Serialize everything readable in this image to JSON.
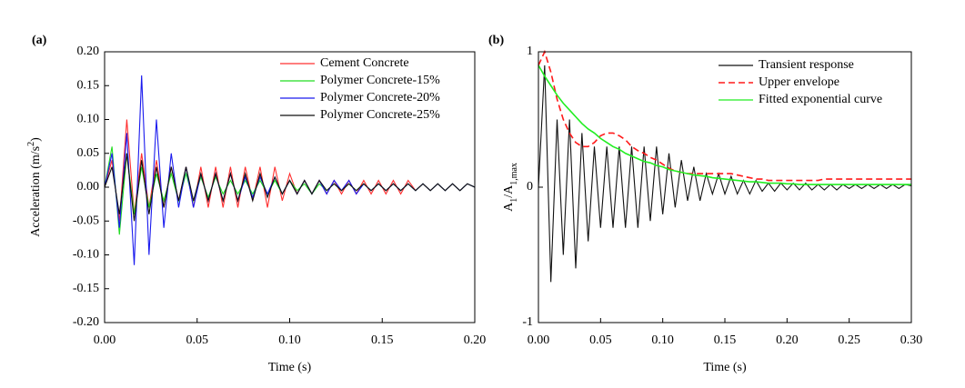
{
  "chart_data": [
    {
      "type": "line",
      "panel_label": "(a)",
      "x_label": "Time (s)",
      "y_label_parts": [
        "Acceleration (m/s",
        "2",
        ")"
      ],
      "xlim": [
        0,
        0.2
      ],
      "ylim": [
        -0.2,
        0.2
      ],
      "xticks": [
        {
          "value": 0,
          "label": "0.00"
        },
        {
          "value": 0.05,
          "label": "0.05"
        },
        {
          "value": 0.1,
          "label": "0.10"
        },
        {
          "value": 0.15,
          "label": "0.15"
        },
        {
          "value": 0.2,
          "label": "0.20"
        }
      ],
      "yticks": [
        {
          "value": -0.2,
          "label": "-0.20"
        },
        {
          "value": -0.15,
          "label": "-0.15"
        },
        {
          "value": -0.1,
          "label": "-0.10"
        },
        {
          "value": -0.05,
          "label": "-0.05"
        },
        {
          "value": 0,
          "label": "0.00"
        },
        {
          "value": 0.05,
          "label": "0.05"
        },
        {
          "value": 0.1,
          "label": "0.10"
        },
        {
          "value": 0.15,
          "label": "0.15"
        },
        {
          "value": 0.2,
          "label": "0.20"
        }
      ],
      "x": [
        0,
        0.004,
        0.008,
        0.012,
        0.016,
        0.02,
        0.024,
        0.028,
        0.032,
        0.036,
        0.04,
        0.044,
        0.048,
        0.052,
        0.056,
        0.06,
        0.064,
        0.068,
        0.072,
        0.076,
        0.08,
        0.084,
        0.088,
        0.092,
        0.096,
        0.1,
        0.104,
        0.108,
        0.112,
        0.116,
        0.12,
        0.124,
        0.128,
        0.132,
        0.136,
        0.14,
        0.144,
        0.148,
        0.152,
        0.156,
        0.16,
        0.164,
        0.168,
        0.172,
        0.176,
        0.18,
        0.184,
        0.188,
        0.192,
        0.196,
        0.2
      ],
      "series": [
        {
          "name": "Cement Concrete",
          "color": "#ff3030",
          "style": "solid",
          "values": [
            0,
            0.04,
            -0.05,
            0.1,
            -0.04,
            0.05,
            -0.03,
            0.04,
            -0.03,
            0.03,
            -0.02,
            0.03,
            -0.03,
            0.03,
            -0.03,
            0.03,
            -0.03,
            0.03,
            -0.03,
            0.03,
            -0.02,
            0.03,
            -0.03,
            0.03,
            -0.02,
            0.02,
            -0.01,
            0.01,
            -0.01,
            0.01,
            -0.01,
            0.01,
            -0.01,
            0.01,
            -0.01,
            0.01,
            -0.01,
            0.01,
            -0.01,
            0.01,
            -0.01,
            0.01,
            -0.005,
            0.005,
            -0.005,
            0.005,
            -0.005,
            0.005,
            -0.005,
            0.005,
            0
          ]
        },
        {
          "name": "Polymer Concrete-15%",
          "color": "#22dd22",
          "style": "solid",
          "values": [
            0,
            0.06,
            -0.07,
            0.05,
            -0.04,
            0.03,
            -0.03,
            0.02,
            -0.02,
            0.02,
            -0.02,
            0.02,
            -0.02,
            0.015,
            -0.015,
            0.015,
            -0.01,
            0.01,
            -0.01,
            0.01,
            -0.01,
            0.01,
            -0.01,
            0.01,
            -0.01,
            0.01,
            -0.005,
            0.005,
            -0.01,
            0.005,
            -0.005,
            0.005,
            -0.005,
            0.005,
            -0.005,
            0.005,
            -0.005,
            0.005,
            -0.005,
            0.005,
            -0.005,
            0.005,
            -0.005,
            0.005,
            -0.005,
            0.005,
            -0.005,
            0.005,
            -0.005,
            0.005,
            0
          ]
        },
        {
          "name": "Polymer Concrete-20%",
          "color": "#1a1aee",
          "style": "solid",
          "values": [
            0,
            0.05,
            -0.06,
            0.08,
            -0.115,
            0.165,
            -0.1,
            0.1,
            -0.06,
            0.05,
            -0.03,
            0.03,
            -0.03,
            0.02,
            -0.02,
            0.02,
            -0.02,
            0.02,
            -0.02,
            0.015,
            -0.015,
            0.015,
            -0.01,
            0.015,
            -0.01,
            0.01,
            -0.01,
            0.01,
            -0.01,
            0.01,
            -0.01,
            0.01,
            -0.005,
            0.01,
            -0.01,
            0.005,
            -0.005,
            0.005,
            -0.005,
            0.005,
            -0.005,
            0.005,
            -0.005,
            0.005,
            -0.005,
            0.005,
            -0.005,
            0.005,
            -0.005,
            0.005,
            0
          ]
        },
        {
          "name": "Polymer Concrete-25%",
          "color": "#111111",
          "style": "solid",
          "values": [
            0,
            0.03,
            -0.04,
            0.05,
            -0.05,
            0.04,
            -0.04,
            0.03,
            -0.03,
            0.03,
            -0.02,
            0.03,
            -0.02,
            0.02,
            -0.02,
            0.02,
            -0.02,
            0.02,
            -0.02,
            0.02,
            -0.02,
            0.02,
            -0.015,
            0.015,
            -0.01,
            0.01,
            -0.01,
            0.01,
            -0.01,
            0.01,
            -0.005,
            0.005,
            -0.005,
            0.005,
            -0.005,
            0.005,
            -0.005,
            0.005,
            -0.005,
            0.005,
            -0.005,
            0.005,
            -0.005,
            0.005,
            -0.005,
            0.005,
            -0.005,
            0.005,
            -0.005,
            0.005,
            0
          ]
        }
      ]
    },
    {
      "type": "line",
      "panel_label": "(b)",
      "x_label": "Time (s)",
      "y_label_parts": [
        "A",
        "1",
        "/A",
        "1,max"
      ],
      "xlim": [
        0,
        0.3
      ],
      "ylim": [
        -1,
        1
      ],
      "xticks": [
        {
          "value": 0,
          "label": "0.00"
        },
        {
          "value": 0.05,
          "label": "0.05"
        },
        {
          "value": 0.1,
          "label": "0.10"
        },
        {
          "value": 0.15,
          "label": "0.15"
        },
        {
          "value": 0.2,
          "label": "0.20"
        },
        {
          "value": 0.25,
          "label": "0.25"
        },
        {
          "value": 0.3,
          "label": "0.30"
        }
      ],
      "yticks": [
        -1,
        0,
        1
      ],
      "x": [
        0,
        0.005,
        0.01,
        0.015,
        0.02,
        0.025,
        0.03,
        0.035,
        0.04,
        0.045,
        0.05,
        0.055,
        0.06,
        0.065,
        0.07,
        0.075,
        0.08,
        0.085,
        0.09,
        0.095,
        0.1,
        0.105,
        0.11,
        0.115,
        0.12,
        0.125,
        0.13,
        0.135,
        0.14,
        0.145,
        0.15,
        0.155,
        0.16,
        0.165,
        0.17,
        0.175,
        0.18,
        0.185,
        0.19,
        0.195,
        0.2,
        0.205,
        0.21,
        0.215,
        0.22,
        0.225,
        0.23,
        0.235,
        0.24,
        0.245,
        0.25,
        0.255,
        0.26,
        0.265,
        0.27,
        0.275,
        0.28,
        0.285,
        0.29,
        0.295,
        0.3
      ],
      "series": [
        {
          "name": "Transient response",
          "color": "#111111",
          "style": "solid",
          "values": [
            0,
            0.9,
            -0.7,
            0.5,
            -0.5,
            0.5,
            -0.6,
            0.4,
            -0.4,
            0.3,
            -0.3,
            0.3,
            -0.3,
            0.3,
            -0.3,
            0.3,
            -0.3,
            0.3,
            -0.25,
            0.3,
            -0.2,
            0.25,
            -0.15,
            0.2,
            -0.1,
            0.15,
            -0.1,
            0.1,
            -0.05,
            0.1,
            -0.05,
            0.08,
            -0.05,
            0.05,
            -0.05,
            0.05,
            -0.03,
            0.03,
            -0.03,
            0.03,
            -0.02,
            0.03,
            -0.02,
            0.03,
            -0.02,
            0.02,
            -0.02,
            0.02,
            -0.02,
            0.02,
            -0.01,
            0.02,
            -0.01,
            0.02,
            -0.01,
            0.02,
            -0.01,
            0.02,
            -0.01,
            0.02,
            0.01
          ]
        },
        {
          "name": "Upper envelope",
          "color": "#ff1a1a",
          "style": "dashed",
          "values": [
            0.9,
            1,
            0.85,
            0.65,
            0.5,
            0.4,
            0.33,
            0.3,
            0.3,
            0.33,
            0.38,
            0.4,
            0.4,
            0.38,
            0.35,
            0.3,
            0.27,
            0.25,
            0.22,
            0.2,
            0.17,
            0.14,
            0.12,
            0.11,
            0.1,
            0.1,
            0.1,
            0.1,
            0.1,
            0.1,
            0.1,
            0.1,
            0.09,
            0.08,
            0.07,
            0.06,
            0.06,
            0.05,
            0.05,
            0.05,
            0.05,
            0.05,
            0.05,
            0.05,
            0.05,
            0.05,
            0.06,
            0.06,
            0.06,
            0.06,
            0.06,
            0.06,
            0.06,
            0.06,
            0.06,
            0.06,
            0.06,
            0.06,
            0.06,
            0.06,
            0.06
          ]
        },
        {
          "name": "Fitted exponential curve",
          "color": "#22ee22",
          "style": "solid",
          "values": [
            0.9,
            0.82,
            0.75,
            0.68,
            0.62,
            0.57,
            0.52,
            0.47,
            0.43,
            0.4,
            0.36,
            0.33,
            0.3,
            0.28,
            0.25,
            0.23,
            0.21,
            0.19,
            0.18,
            0.16,
            0.15,
            0.13,
            0.12,
            0.11,
            0.1,
            0.09,
            0.085,
            0.08,
            0.07,
            0.065,
            0.06,
            0.055,
            0.05,
            0.045,
            0.04,
            0.04,
            0.035,
            0.03,
            0.03,
            0.03,
            0.025,
            0.025,
            0.02,
            0.02,
            0.02,
            0.02,
            0.02,
            0.02,
            0.02,
            0.02,
            0.02,
            0.02,
            0.02,
            0.02,
            0.02,
            0.02,
            0.02,
            0.02,
            0.02,
            0.02,
            0.02
          ]
        }
      ]
    }
  ]
}
